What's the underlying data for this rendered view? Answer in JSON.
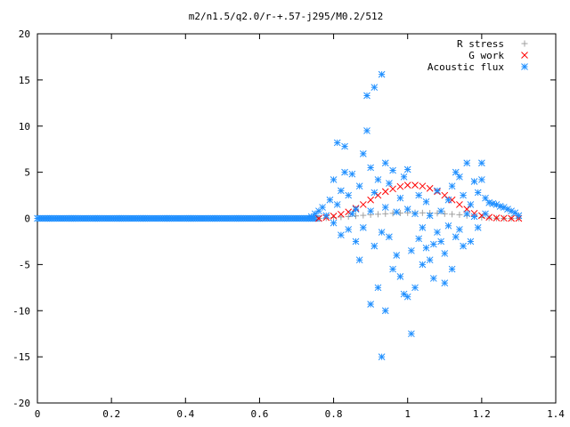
{
  "chart_data": {
    "type": "scatter",
    "title": "m2/n1.5/q2.0/r-+.57-j295/M0.2/512",
    "xlabel": "",
    "ylabel": "",
    "xlim": [
      0,
      1.4
    ],
    "ylim": [
      -20,
      20
    ],
    "xticks": [
      "0",
      "0.2",
      "0.4",
      "0.6",
      "0.8",
      "1",
      "1.2",
      "1.4"
    ],
    "yticks": [
      "-20",
      "-15",
      "-10",
      "-5",
      "0",
      "5",
      "10",
      "15",
      "20"
    ],
    "grid": false,
    "legend_position": "top-right",
    "series": [
      {
        "name": "R stress",
        "marker": "plus",
        "color": "#a0a0a0",
        "points": [
          [
            0.76,
            0.0
          ],
          [
            0.78,
            0.05
          ],
          [
            0.8,
            0.1
          ],
          [
            0.82,
            0.15
          ],
          [
            0.84,
            0.2
          ],
          [
            0.86,
            0.27
          ],
          [
            0.88,
            0.33
          ],
          [
            0.9,
            0.4
          ],
          [
            0.92,
            0.45
          ],
          [
            0.94,
            0.5
          ],
          [
            0.96,
            0.55
          ],
          [
            0.98,
            0.58
          ],
          [
            1.0,
            0.6
          ],
          [
            1.02,
            0.62
          ],
          [
            1.04,
            0.6
          ],
          [
            1.06,
            0.58
          ],
          [
            1.08,
            0.55
          ],
          [
            1.1,
            0.5
          ],
          [
            1.12,
            0.45
          ],
          [
            1.14,
            0.4
          ],
          [
            1.16,
            0.3
          ],
          [
            1.18,
            0.2
          ],
          [
            1.2,
            0.1
          ],
          [
            1.22,
            0.05
          ],
          [
            1.24,
            0.02
          ],
          [
            1.26,
            0.0
          ],
          [
            1.28,
            0.0
          ],
          [
            1.3,
            0.0
          ]
        ]
      },
      {
        "name": "G work",
        "marker": "cross",
        "color": "#ff0000",
        "points": [
          [
            0.76,
            0.0
          ],
          [
            0.78,
            0.1
          ],
          [
            0.8,
            0.25
          ],
          [
            0.82,
            0.45
          ],
          [
            0.84,
            0.7
          ],
          [
            0.86,
            1.1
          ],
          [
            0.88,
            1.5
          ],
          [
            0.9,
            2.0
          ],
          [
            0.92,
            2.5
          ],
          [
            0.94,
            2.9
          ],
          [
            0.96,
            3.2
          ],
          [
            0.98,
            3.45
          ],
          [
            1.0,
            3.6
          ],
          [
            1.02,
            3.6
          ],
          [
            1.04,
            3.5
          ],
          [
            1.06,
            3.25
          ],
          [
            1.08,
            2.9
          ],
          [
            1.1,
            2.5
          ],
          [
            1.12,
            2.0
          ],
          [
            1.14,
            1.5
          ],
          [
            1.16,
            1.0
          ],
          [
            1.18,
            0.55
          ],
          [
            1.2,
            0.3
          ],
          [
            1.22,
            0.12
          ],
          [
            1.24,
            0.05
          ],
          [
            1.26,
            0.02
          ],
          [
            1.28,
            0.0
          ],
          [
            1.3,
            0.0
          ]
        ]
      },
      {
        "name": "Acoustic flux",
        "marker": "star",
        "color": "#1f8fff",
        "points": [
          [
            0.74,
            0.2
          ],
          [
            0.75,
            0.5
          ],
          [
            0.76,
            0.8
          ],
          [
            0.77,
            1.2
          ],
          [
            0.78,
            0.3
          ],
          [
            0.79,
            2.0
          ],
          [
            0.8,
            4.2
          ],
          [
            0.8,
            -0.5
          ],
          [
            0.81,
            8.2
          ],
          [
            0.81,
            1.5
          ],
          [
            0.82,
            3.0
          ],
          [
            0.82,
            -1.8
          ],
          [
            0.83,
            7.8
          ],
          [
            0.83,
            5.0
          ],
          [
            0.84,
            -1.2
          ],
          [
            0.84,
            2.5
          ],
          [
            0.85,
            4.8
          ],
          [
            0.85,
            0.5
          ],
          [
            0.86,
            -2.5
          ],
          [
            0.86,
            1.0
          ],
          [
            0.87,
            3.5
          ],
          [
            0.87,
            -4.5
          ],
          [
            0.88,
            7.0
          ],
          [
            0.88,
            -1.0
          ],
          [
            0.89,
            9.5
          ],
          [
            0.89,
            13.3
          ],
          [
            0.9,
            5.5
          ],
          [
            0.9,
            0.8
          ],
          [
            0.9,
            -9.3
          ],
          [
            0.91,
            14.2
          ],
          [
            0.91,
            -3.0
          ],
          [
            0.91,
            2.8
          ],
          [
            0.92,
            4.2
          ],
          [
            0.92,
            -7.5
          ],
          [
            0.93,
            15.6
          ],
          [
            0.93,
            -1.5
          ],
          [
            0.93,
            -15.0
          ],
          [
            0.94,
            6.0
          ],
          [
            0.94,
            1.2
          ],
          [
            0.94,
            -10.0
          ],
          [
            0.95,
            3.8
          ],
          [
            0.95,
            -2.0
          ],
          [
            0.96,
            5.2
          ],
          [
            0.96,
            -5.5
          ],
          [
            0.97,
            0.7
          ],
          [
            0.97,
            -4.0
          ],
          [
            0.98,
            2.2
          ],
          [
            0.98,
            -6.3
          ],
          [
            0.99,
            4.5
          ],
          [
            0.99,
            -8.2
          ],
          [
            1.0,
            -8.5
          ],
          [
            1.0,
            5.3
          ],
          [
            1.0,
            1.0
          ],
          [
            1.01,
            -12.5
          ],
          [
            1.01,
            -3.5
          ],
          [
            1.02,
            0.5
          ],
          [
            1.02,
            -7.5
          ],
          [
            1.03,
            -2.2
          ],
          [
            1.03,
            2.5
          ],
          [
            1.04,
            -5.0
          ],
          [
            1.04,
            -1.0
          ],
          [
            1.05,
            -3.2
          ],
          [
            1.05,
            1.8
          ],
          [
            1.06,
            -4.5
          ],
          [
            1.06,
            0.3
          ],
          [
            1.07,
            -2.8
          ],
          [
            1.07,
            -6.5
          ],
          [
            1.08,
            3.0
          ],
          [
            1.08,
            -1.5
          ],
          [
            1.09,
            -2.5
          ],
          [
            1.09,
            0.8
          ],
          [
            1.1,
            -7.0
          ],
          [
            1.1,
            -3.8
          ],
          [
            1.11,
            2.0
          ],
          [
            1.11,
            -0.8
          ],
          [
            1.12,
            -5.5
          ],
          [
            1.12,
            3.5
          ],
          [
            1.13,
            -2.0
          ],
          [
            1.13,
            5.0
          ],
          [
            1.14,
            -1.2
          ],
          [
            1.14,
            4.5
          ],
          [
            1.15,
            2.5
          ],
          [
            1.15,
            -3.0
          ],
          [
            1.16,
            6.0
          ],
          [
            1.16,
            0.5
          ],
          [
            1.17,
            1.5
          ],
          [
            1.17,
            -2.5
          ],
          [
            1.18,
            4.0
          ],
          [
            1.18,
            0.2
          ],
          [
            1.19,
            2.8
          ],
          [
            1.19,
            -1.0
          ],
          [
            1.2,
            6.0
          ],
          [
            1.2,
            4.2
          ],
          [
            1.21,
            2.2
          ],
          [
            1.21,
            0.5
          ],
          [
            1.22,
            1.7
          ],
          [
            1.23,
            1.6
          ],
          [
            1.24,
            1.5
          ],
          [
            1.25,
            1.3
          ],
          [
            1.26,
            1.2
          ],
          [
            1.27,
            1.0
          ],
          [
            1.28,
            0.8
          ],
          [
            1.29,
            0.6
          ],
          [
            1.3,
            0.3
          ]
        ]
      }
    ],
    "baseline_series": {
      "series_index": 2,
      "from": 0,
      "to": 0.76,
      "step": 0.005,
      "value": 0
    }
  }
}
